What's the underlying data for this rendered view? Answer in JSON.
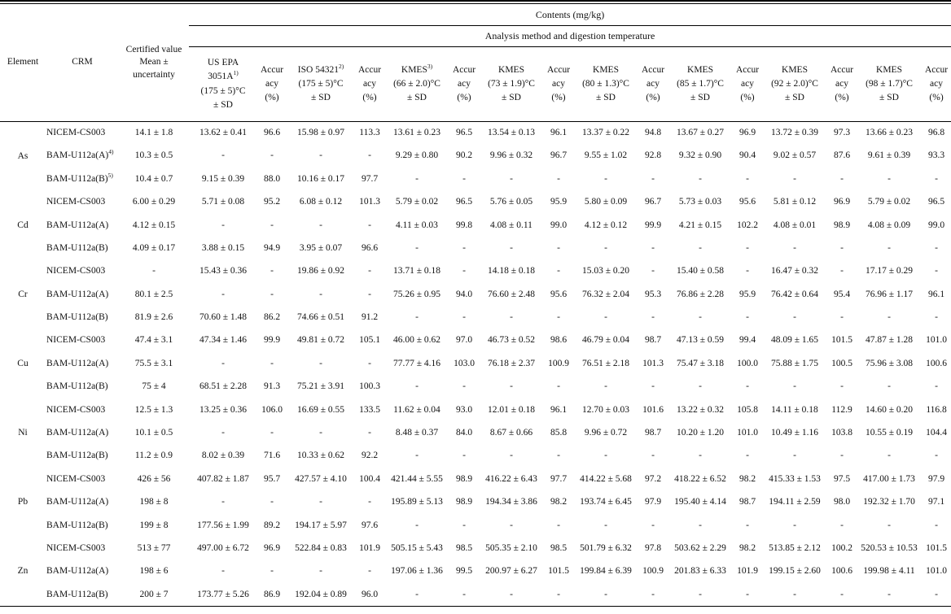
{
  "table": {
    "contents_header": "Contents (mg/kg)",
    "analysis_header": "Analysis method and digestion temperature",
    "element_header": "Element",
    "crm_header": "CRM",
    "certified_header_lines": [
      "Certified value",
      "Mean ±",
      "uncertainty"
    ],
    "accuracy_header_lines": [
      "Accur",
      "acy",
      "(%)"
    ],
    "methods": [
      {
        "line1": "US EPA",
        "name": "3051A",
        "sup": "1)",
        "temp": "(175 ± 5)°C",
        "sd": "± SD"
      },
      {
        "line1": "",
        "name": "ISO 54321",
        "sup": "2)",
        "temp": "(175 ± 5)°C",
        "sd": "± SD"
      },
      {
        "line1": "",
        "name": "KMES",
        "sup": "3)",
        "temp": "(66 ± 2.0)°C",
        "sd": "± SD"
      },
      {
        "line1": "",
        "name": "KMES",
        "sup": "",
        "temp": "(73 ± 1.9)°C",
        "sd": "± SD"
      },
      {
        "line1": "",
        "name": "KMES",
        "sup": "",
        "temp": "(80 ± 1.3)°C",
        "sd": "± SD"
      },
      {
        "line1": "",
        "name": "KMES",
        "sup": "",
        "temp": "(85 ± 1.7)°C",
        "sd": "± SD"
      },
      {
        "line1": "",
        "name": "KMES",
        "sup": "",
        "temp": "(92 ± 2.0)°C",
        "sd": "± SD"
      },
      {
        "line1": "",
        "name": "KMES",
        "sup": "",
        "temp": "(98 ± 1.7)°C",
        "sd": "± SD"
      }
    ],
    "groups": [
      {
        "element": "As",
        "rows": [
          {
            "crm": "NICEM-CS003",
            "crm_sup": "",
            "certified": "14.1 ± 1.8",
            "values": [
              "13.62 ± 0.41",
              "96.6",
              "15.98 ± 0.97",
              "113.3",
              "13.61 ± 0.23",
              "96.5",
              "13.54 ± 0.13",
              "96.1",
              "13.37 ± 0.22",
              "94.8",
              "13.67 ± 0.27",
              "96.9",
              "13.72 ± 0.39",
              "97.3",
              "13.66 ± 0.23",
              "96.8"
            ]
          },
          {
            "crm": "BAM-U112a(A)",
            "crm_sup": "4)",
            "certified": "10.3 ± 0.5",
            "values": [
              "-",
              "-",
              "-",
              "-",
              "9.29 ± 0.80",
              "90.2",
              "9.96 ± 0.32",
              "96.7",
              "9.55 ± 1.02",
              "92.8",
              "9.32 ± 0.90",
              "90.4",
              "9.02 ± 0.57",
              "87.6",
              "9.61 ± 0.39",
              "93.3"
            ]
          },
          {
            "crm": "BAM-U112a(B)",
            "crm_sup": "5)",
            "certified": "10.4 ± 0.7",
            "values": [
              "9.15 ± 0.39",
              "88.0",
              "10.16 ± 0.17",
              "97.7",
              "-",
              "-",
              "-",
              "-",
              "-",
              "-",
              "-",
              "-",
              "-",
              "-",
              "-",
              "-"
            ]
          }
        ]
      },
      {
        "element": "Cd",
        "rows": [
          {
            "crm": "NICEM-CS003",
            "crm_sup": "",
            "certified": "6.00 ± 0.29",
            "values": [
              "5.71 ± 0.08",
              "95.2",
              "6.08 ± 0.12",
              "101.3",
              "5.79 ± 0.02",
              "96.5",
              "5.76 ± 0.05",
              "95.9",
              "5.80 ± 0.09",
              "96.7",
              "5.73 ± 0.03",
              "95.6",
              "5.81 ± 0.12",
              "96.9",
              "5.79 ± 0.02",
              "96.5"
            ]
          },
          {
            "crm": "BAM-U112a(A)",
            "crm_sup": "",
            "certified": "4.12 ± 0.15",
            "values": [
              "-",
              "-",
              "-",
              "-",
              "4.11 ± 0.03",
              "99.8",
              "4.08 ± 0.11",
              "99.0",
              "4.12 ± 0.12",
              "99.9",
              "4.21 ± 0.15",
              "102.2",
              "4.08 ± 0.01",
              "98.9",
              "4.08 ± 0.09",
              "99.0"
            ]
          },
          {
            "crm": "BAM-U112a(B)",
            "crm_sup": "",
            "certified": "4.09 ± 0.17",
            "values": [
              "3.88 ± 0.15",
              "94.9",
              "3.95 ± 0.07",
              "96.6",
              "-",
              "-",
              "-",
              "-",
              "-",
              "-",
              "-",
              "-",
              "-",
              "-",
              "-",
              "-"
            ]
          }
        ]
      },
      {
        "element": "Cr",
        "rows": [
          {
            "crm": "NICEM-CS003",
            "crm_sup": "",
            "certified": "-",
            "values": [
              "15.43 ± 0.36",
              "-",
              "19.86 ± 0.92",
              "-",
              "13.71 ± 0.18",
              "-",
              "14.18 ± 0.18",
              "-",
              "15.03 ± 0.20",
              "-",
              "15.40 ± 0.58",
              "-",
              "16.47 ± 0.32",
              "-",
              "17.17 ± 0.29",
              "-"
            ]
          },
          {
            "crm": "BAM-U112a(A)",
            "crm_sup": "",
            "certified": "80.1 ± 2.5",
            "values": [
              "-",
              "-",
              "-",
              "-",
              "75.26 ± 0.95",
              "94.0",
              "76.60 ± 2.48",
              "95.6",
              "76.32 ± 2.04",
              "95.3",
              "76.86 ± 2.28",
              "95.9",
              "76.42 ± 0.64",
              "95.4",
              "76.96 ± 1.17",
              "96.1"
            ]
          },
          {
            "crm": "BAM-U112a(B)",
            "crm_sup": "",
            "certified": "81.9 ± 2.6",
            "values": [
              "70.60 ± 1.48",
              "86.2",
              "74.66 ± 0.51",
              "91.2",
              "-",
              "-",
              "-",
              "-",
              "-",
              "-",
              "-",
              "-",
              "-",
              "-",
              "-",
              "-"
            ]
          }
        ]
      },
      {
        "element": "Cu",
        "rows": [
          {
            "crm": "NICEM-CS003",
            "crm_sup": "",
            "certified": "47.4 ± 3.1",
            "values": [
              "47.34 ± 1.46",
              "99.9",
              "49.81 ± 0.72",
              "105.1",
              "46.00 ± 0.62",
              "97.0",
              "46.73 ± 0.52",
              "98.6",
              "46.79 ± 0.04",
              "98.7",
              "47.13 ± 0.59",
              "99.4",
              "48.09 ± 1.65",
              "101.5",
              "47.87 ± 1.28",
              "101.0"
            ]
          },
          {
            "crm": "BAM-U112a(A)",
            "crm_sup": "",
            "certified": "75.5 ± 3.1",
            "values": [
              "-",
              "-",
              "-",
              "-",
              "77.77 ± 4.16",
              "103.0",
              "76.18 ± 2.37",
              "100.9",
              "76.51 ± 2.18",
              "101.3",
              "75.47 ± 3.18",
              "100.0",
              "75.88 ± 1.75",
              "100.5",
              "75.96 ± 3.08",
              "100.6"
            ]
          },
          {
            "crm": "BAM-U112a(B)",
            "crm_sup": "",
            "certified": "75 ± 4",
            "values": [
              "68.51 ± 2.28",
              "91.3",
              "75.21 ± 3.91",
              "100.3",
              "-",
              "-",
              "-",
              "-",
              "-",
              "-",
              "-",
              "-",
              "-",
              "-",
              "-",
              "-"
            ]
          }
        ]
      },
      {
        "element": "Ni",
        "rows": [
          {
            "crm": "NICEM-CS003",
            "crm_sup": "",
            "certified": "12.5 ± 1.3",
            "values": [
              "13.25 ± 0.36",
              "106.0",
              "16.69 ± 0.55",
              "133.5",
              "11.62 ± 0.04",
              "93.0",
              "12.01 ± 0.18",
              "96.1",
              "12.70 ± 0.03",
              "101.6",
              "13.22 ± 0.32",
              "105.8",
              "14.11 ± 0.18",
              "112.9",
              "14.60 ± 0.20",
              "116.8"
            ]
          },
          {
            "crm": "BAM-U112a(A)",
            "crm_sup": "",
            "certified": "10.1 ± 0.5",
            "values": [
              "-",
              "-",
              "-",
              "-",
              "8.48 ± 0.37",
              "84.0",
              "8.67 ± 0.66",
              "85.8",
              "9.96 ± 0.72",
              "98.7",
              "10.20 ± 1.20",
              "101.0",
              "10.49 ± 1.16",
              "103.8",
              "10.55 ± 0.19",
              "104.4"
            ]
          },
          {
            "crm": "BAM-U112a(B)",
            "crm_sup": "",
            "certified": "11.2 ± 0.9",
            "values": [
              "8.02 ± 0.39",
              "71.6",
              "10.33 ± 0.62",
              "92.2",
              "-",
              "-",
              "-",
              "-",
              "-",
              "-",
              "-",
              "-",
              "-",
              "-",
              "-",
              "-"
            ]
          }
        ]
      },
      {
        "element": "Pb",
        "rows": [
          {
            "crm": "NICEM-CS003",
            "crm_sup": "",
            "certified": "426 ± 56",
            "values": [
              "407.82 ± 1.87",
              "95.7",
              "427.57 ± 4.10",
              "100.4",
              "421.44 ± 5.55",
              "98.9",
              "416.22 ± 6.43",
              "97.7",
              "414.22 ± 5.68",
              "97.2",
              "418.22 ± 6.52",
              "98.2",
              "415.33 ± 1.53",
              "97.5",
              "417.00 ± 1.73",
              "97.9"
            ]
          },
          {
            "crm": "BAM-U112a(A)",
            "crm_sup": "",
            "certified": "198 ± 8",
            "values": [
              "-",
              "-",
              "-",
              "-",
              "195.89 ± 5.13",
              "98.9",
              "194.34 ± 3.86",
              "98.2",
              "193.74 ± 6.45",
              "97.9",
              "195.40 ± 4.14",
              "98.7",
              "194.11 ± 2.59",
              "98.0",
              "192.32 ± 1.70",
              "97.1"
            ]
          },
          {
            "crm": "BAM-U112a(B)",
            "crm_sup": "",
            "certified": "199 ± 8",
            "values": [
              "177.56 ± 1.99",
              "89.2",
              "194.17 ± 5.97",
              "97.6",
              "-",
              "-",
              "-",
              "-",
              "-",
              "-",
              "-",
              "-",
              "-",
              "-",
              "-",
              "-"
            ]
          }
        ]
      },
      {
        "element": "Zn",
        "rows": [
          {
            "crm": "NICEM-CS003",
            "crm_sup": "",
            "certified": "513 ± 77",
            "values": [
              "497.00 ± 6.72",
              "96.9",
              "522.84 ± 0.83",
              "101.9",
              "505.15 ± 5.43",
              "98.5",
              "505.35 ± 2.10",
              "98.5",
              "501.79 ± 6.32",
              "97.8",
              "503.62 ± 2.29",
              "98.2",
              "513.85 ± 2.12",
              "100.2",
              "520.53 ± 10.53",
              "101.5"
            ]
          },
          {
            "crm": "BAM-U112a(A)",
            "crm_sup": "",
            "certified": "198 ± 6",
            "values": [
              "-",
              "-",
              "-",
              "-",
              "197.06 ± 1.36",
              "99.5",
              "200.97 ± 6.27",
              "101.5",
              "199.84 ± 6.39",
              "100.9",
              "201.83 ± 6.33",
              "101.9",
              "199.15 ± 2.60",
              "100.6",
              "199.98 ± 4.11",
              "101.0"
            ]
          },
          {
            "crm": "BAM-U112a(B)",
            "crm_sup": "",
            "certified": "200 ± 7",
            "values": [
              "173.77 ± 5.26",
              "86.9",
              "192.04 ± 0.89",
              "96.0",
              "-",
              "-",
              "-",
              "-",
              "-",
              "-",
              "-",
              "-",
              "-",
              "-",
              "-",
              "-"
            ]
          }
        ]
      }
    ]
  }
}
